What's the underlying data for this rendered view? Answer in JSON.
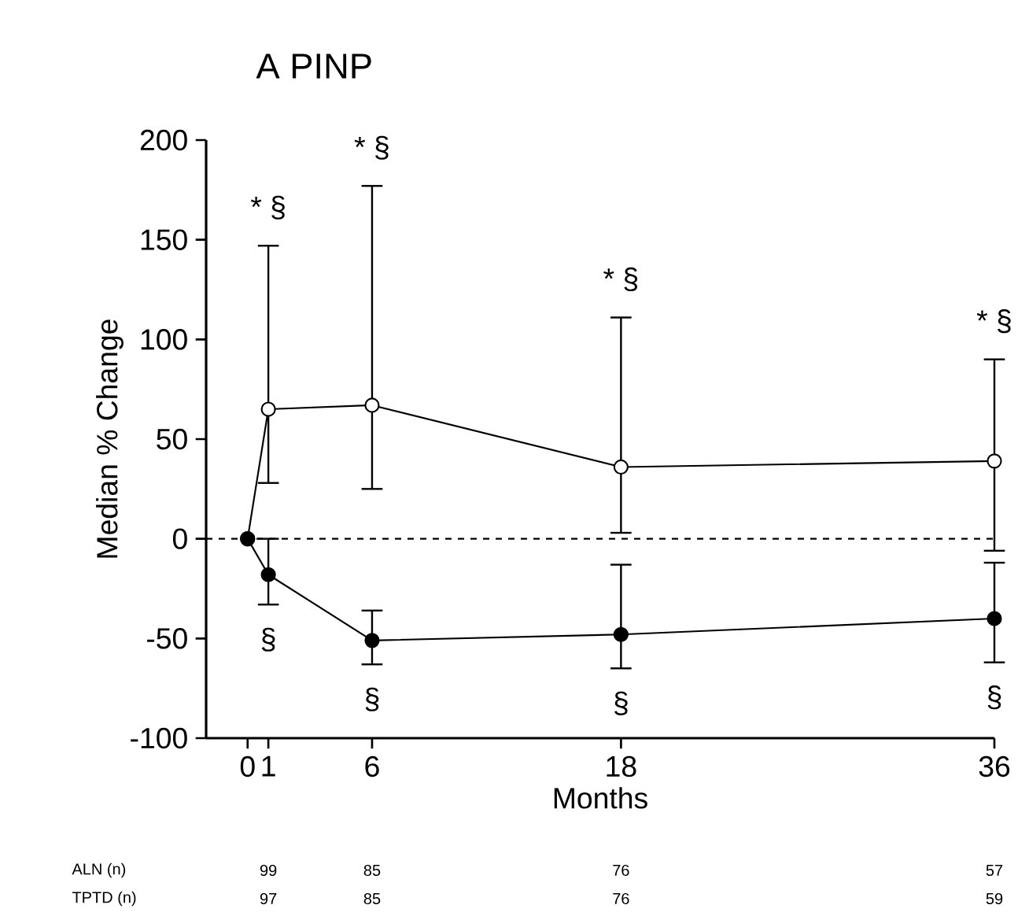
{
  "chart_data": {
    "type": "line",
    "title": "A  PINP",
    "xlabel": "Months",
    "ylabel": "Median % Change",
    "x": [
      0,
      1,
      6,
      18,
      36
    ],
    "xlim": [
      -2,
      36
    ],
    "xticks": [
      0,
      1,
      6,
      18,
      36
    ],
    "ylim": [
      -100,
      200
    ],
    "yticks": [
      -100,
      -50,
      0,
      50,
      100,
      150,
      200
    ],
    "marker": "circle",
    "line_style": "solid",
    "grid": false,
    "series": [
      {
        "color": "#000000",
        "values": [
          0,
          65,
          67,
          36,
          39
        ],
        "errors": [
          null,
          [
            28,
            147
          ],
          [
            25,
            177
          ],
          [
            3,
            111
          ],
          [
            -6,
            90
          ]
        ]
      },
      {
        "color": "#000000",
        "values": [
          0,
          -18,
          -51,
          -48,
          -40
        ],
        "errors": [
          null,
          [
            -33,
            0
          ],
          [
            -63,
            -36
          ],
          [
            -65,
            -13
          ],
          [
            -62,
            -12
          ]
        ]
      }
    ],
    "ref_lines": [
      {
        "axis": "y",
        "value": 0,
        "line_style": "dashed",
        "color": "#000000"
      }
    ],
    "annotations": [
      "* §",
      "* §",
      "* §",
      "* §",
      "§",
      "§",
      "§",
      "§",
      "ALN (n)",
      "99",
      "85",
      "76",
      "57",
      "TPTD (n)",
      "97",
      "85",
      "76",
      "59"
    ]
  }
}
